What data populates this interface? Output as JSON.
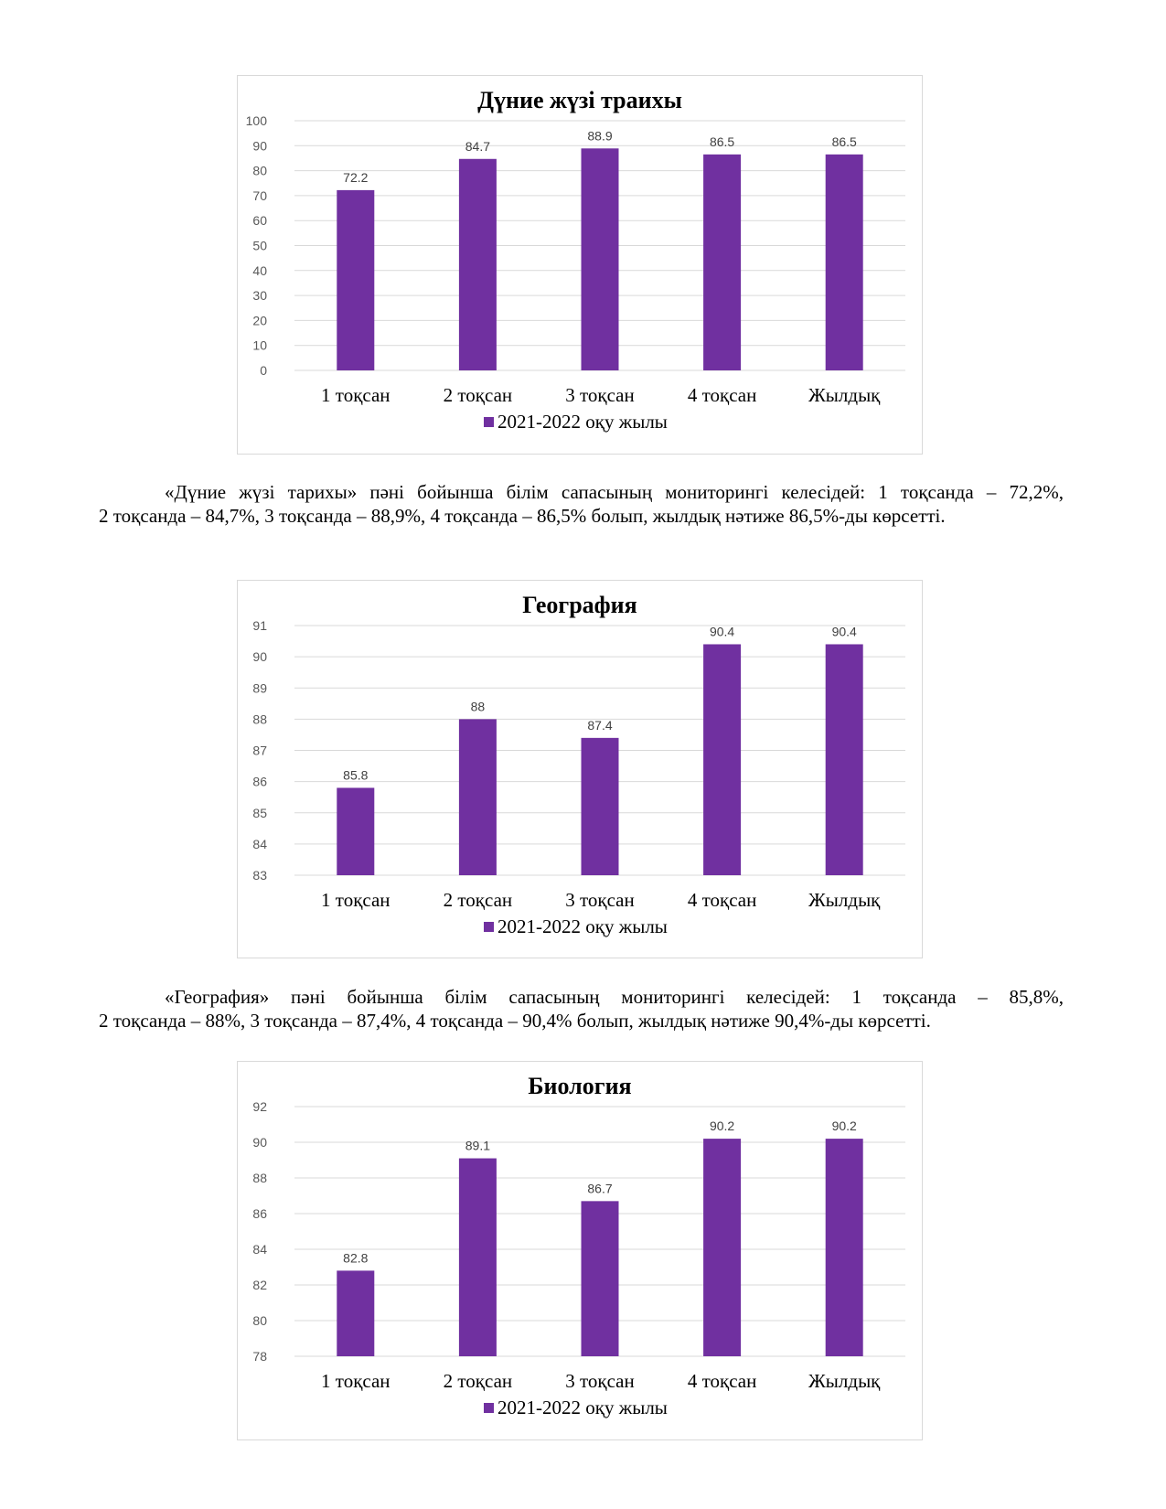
{
  "charts": [
    {
      "chart_data": {
        "type": "bar",
        "title": "Дүние жүзі траихы",
        "categories": [
          "1 тоқсан",
          "2 тоқсан",
          "3 тоқсан",
          "4 тоқсан",
          "Жылдық"
        ],
        "series": [
          {
            "name": "2021-2022 оқу жылы",
            "values": [
              72.2,
              84.7,
              88.9,
              86.5,
              86.5
            ]
          }
        ],
        "value_labels": [
          "72.2",
          "84.7",
          "88.9",
          "86.5",
          "86.5"
        ],
        "yticks": [
          "0",
          "10",
          "20",
          "30",
          "40",
          "50",
          "60",
          "70",
          "80",
          "90",
          "100"
        ],
        "ylim": [
          0,
          100
        ],
        "ystep": 10,
        "grid": true,
        "legend": "bottom",
        "color": "#7030A0"
      }
    },
    {
      "chart_data": {
        "type": "bar",
        "title": "География",
        "categories": [
          "1 тоқсан",
          "2 тоқсан",
          "3 тоқсан",
          "4 тоқсан",
          "Жылдық"
        ],
        "series": [
          {
            "name": "2021-2022 оқу жылы",
            "values": [
              85.8,
              88,
              87.4,
              90.4,
              90.4
            ]
          }
        ],
        "value_labels": [
          "85.8",
          "88",
          "87.4",
          "90.4",
          "90.4"
        ],
        "yticks": [
          "83",
          "84",
          "85",
          "86",
          "87",
          "88",
          "89",
          "90",
          "91"
        ],
        "ylim": [
          83,
          91
        ],
        "ystep": 1,
        "grid": true,
        "legend": "bottom",
        "color": "#7030A0"
      }
    },
    {
      "chart_data": {
        "type": "bar",
        "title": "Биология",
        "categories": [
          "1 тоқсан",
          "2 тоқсан",
          "3 тоқсан",
          "4 тоқсан",
          "Жылдық"
        ],
        "series": [
          {
            "name": "2021-2022 оқу жылы",
            "values": [
              82.8,
              89.1,
              86.7,
              90.2,
              90.2
            ]
          }
        ],
        "value_labels": [
          "82.8",
          "89.1",
          "86.7",
          "90.2",
          "90.2"
        ],
        "yticks": [
          "78",
          "80",
          "82",
          "84",
          "86",
          "88",
          "90",
          "92"
        ],
        "ylim": [
          78,
          92
        ],
        "ystep": 2,
        "grid": true,
        "legend": "bottom",
        "color": "#7030A0"
      }
    }
  ],
  "paragraphs": [
    {
      "line1": "«Дүние жүзі тарихы» пәні бойынша білім сапасының мониторингі келесідей: 1 тоқсанда – 72,2%,",
      "line2": "2 тоқсанда – 84,7%, 3 тоқсанда – 88,9%, 4 тоқсанда – 86,5% болып, жылдық нәтиже 86,5%-ды көрсетті."
    },
    {
      "line1": "«География» пәні бойынша білім сапасының мониторингі келесідей: 1 тоқсанда – 85,8%,",
      "line2": "2 тоқсанда – 88%, 3 тоқсанда – 87,4%, 4 тоқсанда – 90,4% болып, жылдық нәтиже 90,4%-ды көрсетті."
    }
  ]
}
